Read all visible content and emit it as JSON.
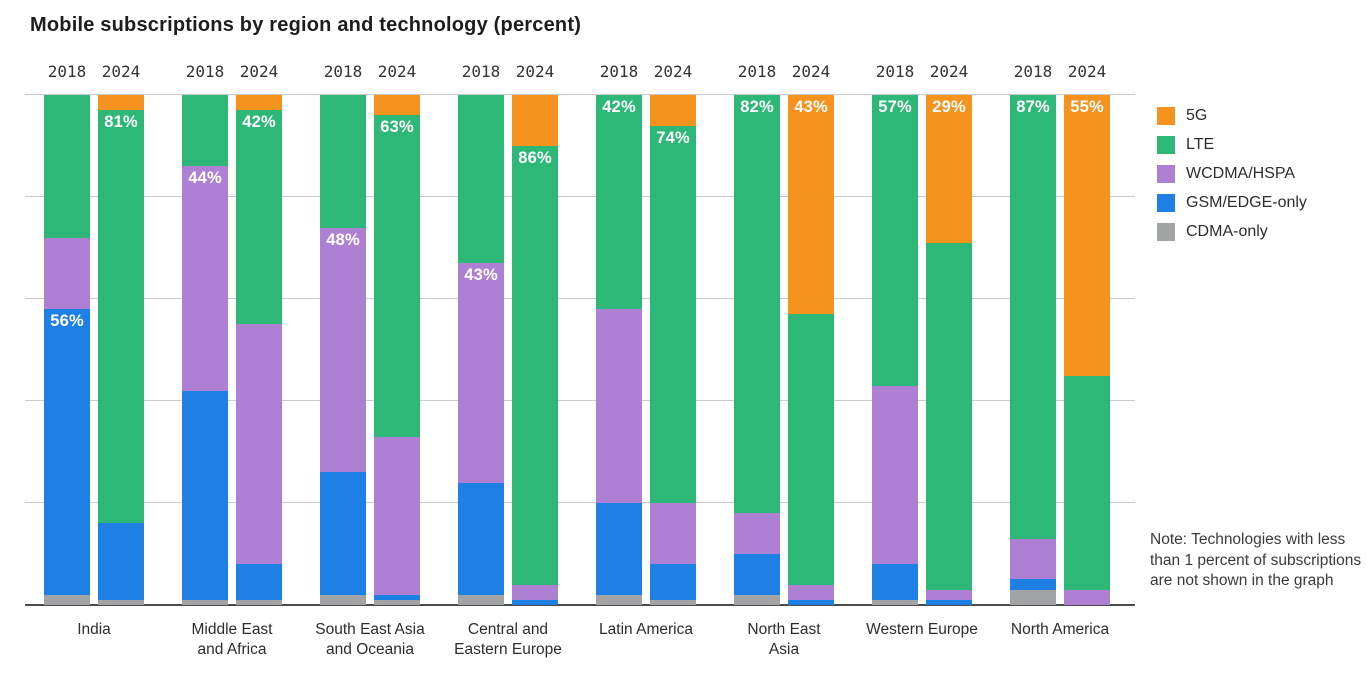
{
  "title": "Mobile subscriptions by region and technology (percent)",
  "note": "Note: Technologies with less than 1 percent of subscriptions are not shown in the graph",
  "legend": {
    "items": [
      {
        "label": "5G",
        "color": "#F6921E"
      },
      {
        "label": "LTE",
        "color": "#2DB877"
      },
      {
        "label": "WCDMA/HSPA",
        "color": "#AE80D3"
      },
      {
        "label": "GSM/EDGE-only",
        "color": "#1E7FE4"
      },
      {
        "label": "CDMA-only",
        "color": "#A2A3A5"
      }
    ]
  },
  "chart_data": {
    "type": "bar",
    "stacked": true,
    "title": "Mobile subscriptions by region and technology (percent)",
    "unit": "percent",
    "ylim": [
      0,
      100
    ],
    "gridline_interval": 20,
    "grid": true,
    "legend_position": "right",
    "years": [
      "2018",
      "2024"
    ],
    "stack_order_top_to_bottom": [
      "5G",
      "LTE",
      "WCDMA/HSPA",
      "GSM/EDGE-only",
      "CDMA-only"
    ],
    "regions": [
      {
        "name": "India",
        "label_lines": [
          "India"
        ],
        "bars": [
          {
            "year": "2018",
            "values": {
              "5G": 0,
              "LTE": 28,
              "WCDMA/HSPA": 14,
              "GSM/EDGE-only": 56,
              "CDMA-only": 2
            },
            "label": {
              "text": "56%",
              "segment": "GSM/EDGE-only"
            }
          },
          {
            "year": "2024",
            "values": {
              "5G": 3,
              "LTE": 81,
              "WCDMA/HSPA": 0,
              "GSM/EDGE-only": 15,
              "CDMA-only": 1
            },
            "label": {
              "text": "81%",
              "segment": "LTE"
            }
          }
        ]
      },
      {
        "name": "Middle East and Africa",
        "label_lines": [
          "Middle East",
          "and Africa"
        ],
        "bars": [
          {
            "year": "2018",
            "values": {
              "5G": 0,
              "LTE": 14,
              "WCDMA/HSPA": 44,
              "GSM/EDGE-only": 41,
              "CDMA-only": 1
            },
            "label": {
              "text": "44%",
              "segment": "WCDMA/HSPA"
            }
          },
          {
            "year": "2024",
            "values": {
              "5G": 3,
              "LTE": 42,
              "WCDMA/HSPA": 47,
              "GSM/EDGE-only": 7,
              "CDMA-only": 1
            },
            "label": {
              "text": "42%",
              "segment": "LTE"
            }
          }
        ]
      },
      {
        "name": "South East Asia and Oceania",
        "label_lines": [
          "South East Asia",
          "and Oceania"
        ],
        "bars": [
          {
            "year": "2018",
            "values": {
              "5G": 0,
              "LTE": 26,
              "WCDMA/HSPA": 48,
              "GSM/EDGE-only": 24,
              "CDMA-only": 2
            },
            "label": {
              "text": "48%",
              "segment": "WCDMA/HSPA"
            }
          },
          {
            "year": "2024",
            "values": {
              "5G": 4,
              "LTE": 63,
              "WCDMA/HSPA": 31,
              "GSM/EDGE-only": 1,
              "CDMA-only": 1
            },
            "label": {
              "text": "63%",
              "segment": "LTE"
            }
          }
        ]
      },
      {
        "name": "Central and Eastern Europe",
        "label_lines": [
          "Central and",
          "Eastern Europe"
        ],
        "bars": [
          {
            "year": "2018",
            "values": {
              "5G": 0,
              "LTE": 33,
              "WCDMA/HSPA": 43,
              "GSM/EDGE-only": 22,
              "CDMA-only": 2
            },
            "label": {
              "text": "43%",
              "segment": "WCDMA/HSPA"
            }
          },
          {
            "year": "2024",
            "values": {
              "5G": 10,
              "LTE": 86,
              "WCDMA/HSPA": 3,
              "GSM/EDGE-only": 1,
              "CDMA-only": 0
            },
            "label": {
              "text": "86%",
              "segment": "LTE"
            }
          }
        ]
      },
      {
        "name": "Latin America",
        "label_lines": [
          "Latin America"
        ],
        "bars": [
          {
            "year": "2018",
            "values": {
              "5G": 0,
              "LTE": 42,
              "WCDMA/HSPA": 38,
              "GSM/EDGE-only": 18,
              "CDMA-only": 2
            },
            "label": {
              "text": "42%",
              "segment": "LTE"
            }
          },
          {
            "year": "2024",
            "values": {
              "5G": 6,
              "LTE": 74,
              "WCDMA/HSPA": 12,
              "GSM/EDGE-only": 7,
              "CDMA-only": 1
            },
            "label": {
              "text": "74%",
              "segment": "LTE"
            }
          }
        ]
      },
      {
        "name": "North East Asia",
        "label_lines": [
          "North East",
          "Asia"
        ],
        "bars": [
          {
            "year": "2018",
            "values": {
              "5G": 0,
              "LTE": 82,
              "WCDMA/HSPA": 8,
              "GSM/EDGE-only": 8,
              "CDMA-only": 2
            },
            "label": {
              "text": "82%",
              "segment": "LTE"
            }
          },
          {
            "year": "2024",
            "values": {
              "5G": 43,
              "LTE": 53,
              "WCDMA/HSPA": 3,
              "GSM/EDGE-only": 1,
              "CDMA-only": 0
            },
            "label": {
              "text": "43%",
              "segment": "5G"
            }
          }
        ]
      },
      {
        "name": "Western Europe",
        "label_lines": [
          "Western Europe"
        ],
        "bars": [
          {
            "year": "2018",
            "values": {
              "5G": 0,
              "LTE": 57,
              "WCDMA/HSPA": 35,
              "GSM/EDGE-only": 7,
              "CDMA-only": 1
            },
            "label": {
              "text": "57%",
              "segment": "LTE"
            }
          },
          {
            "year": "2024",
            "values": {
              "5G": 29,
              "LTE": 68,
              "WCDMA/HSPA": 2,
              "GSM/EDGE-only": 1,
              "CDMA-only": 0
            },
            "label": {
              "text": "29%",
              "segment": "5G"
            }
          }
        ]
      },
      {
        "name": "North America",
        "label_lines": [
          "North America"
        ],
        "bars": [
          {
            "year": "2018",
            "values": {
              "5G": 0,
              "LTE": 87,
              "WCDMA/HSPA": 8,
              "GSM/EDGE-only": 2,
              "CDMA-only": 3
            },
            "label": {
              "text": "87%",
              "segment": "LTE"
            }
          },
          {
            "year": "2024",
            "values": {
              "5G": 55,
              "LTE": 42,
              "WCDMA/HSPA": 3,
              "GSM/EDGE-only": 0,
              "CDMA-only": 0
            },
            "label": {
              "text": "55%",
              "segment": "5G"
            }
          }
        ]
      }
    ]
  }
}
